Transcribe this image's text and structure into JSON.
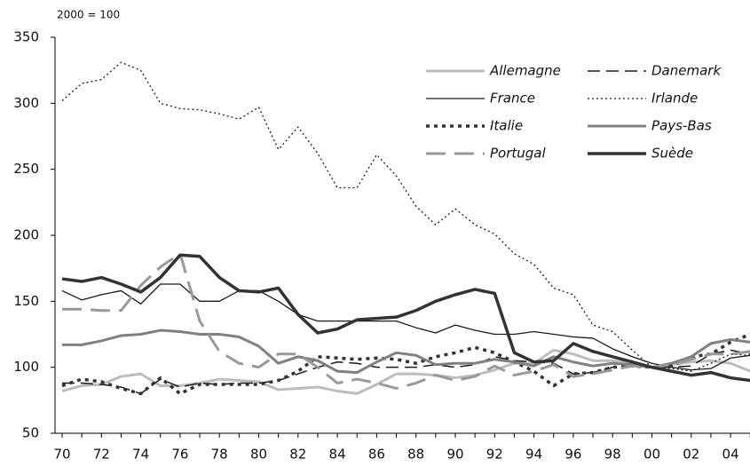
{
  "chart_data": {
    "type": "line",
    "subtitle": "2000 = 100",
    "categories": [
      "70",
      null,
      "72",
      null,
      "74",
      null,
      "76",
      null,
      "78",
      null,
      "80",
      null,
      "82",
      null,
      "84",
      null,
      "86",
      null,
      "88",
      null,
      "90",
      null,
      "92",
      null,
      "94",
      null,
      "96",
      null,
      "98",
      null,
      "00",
      null,
      "02",
      null,
      "04",
      null
    ],
    "ylim": [
      50,
      350
    ],
    "yticks": [
      50,
      100,
      150,
      200,
      250,
      300,
      350
    ],
    "series": [
      {
        "name": "Allemagne",
        "color": "#bdbdbd",
        "style": "solid",
        "width": 3,
        "values": [
          82,
          86,
          87,
          93,
          95,
          86,
          86,
          88,
          91,
          90,
          89,
          83,
          84,
          85,
          82,
          80,
          87,
          95,
          95,
          94,
          92,
          94,
          98,
          103,
          103,
          113,
          110,
          105,
          105,
          103,
          100,
          102,
          104,
          105,
          103,
          97
        ]
      },
      {
        "name": "Danemark",
        "color": "#1a1a1a",
        "style": "dashed",
        "width": 1.5,
        "values": [
          88,
          88,
          87,
          85,
          80,
          91,
          85,
          88,
          87,
          88,
          88,
          90,
          95,
          100,
          104,
          103,
          100,
          100,
          100,
          102,
          100,
          102,
          108,
          105,
          104,
          103,
          95,
          96,
          100,
          101,
          100,
          100,
          101,
          110,
          113,
          110
        ]
      },
      {
        "name": "France",
        "color": "#1a1a1a",
        "style": "solid",
        "width": 1.3,
        "values": [
          158,
          151,
          155,
          158,
          148,
          163,
          163,
          150,
          150,
          158,
          158,
          150,
          140,
          135,
          135,
          135,
          135,
          135,
          130,
          126,
          132,
          128,
          125,
          125,
          127,
          125,
          123,
          122,
          114,
          108,
          103,
          100,
          98,
          99,
          107,
          109
        ]
      },
      {
        "name": "Irlande",
        "color": "#1a1a1a",
        "style": "dotted",
        "width": 1.3,
        "values": [
          302,
          315,
          318,
          331,
          325,
          300,
          296,
          295,
          292,
          288,
          297,
          265,
          282,
          262,
          236,
          236,
          261,
          245,
          222,
          208,
          220,
          208,
          201,
          186,
          178,
          160,
          155,
          132,
          127,
          113,
          100,
          99,
          97,
          103,
          110,
          109
        ]
      },
      {
        "name": "Italie",
        "color": "#333333",
        "style": "dotted-heavy",
        "width": 3.5,
        "values": [
          86,
          91,
          89,
          84,
          80,
          92,
          80,
          87,
          87,
          87,
          87,
          90,
          97,
          108,
          107,
          106,
          107,
          106,
          103,
          108,
          111,
          115,
          111,
          104,
          97,
          86,
          95,
          96,
          100,
          101,
          100,
          101,
          108,
          110,
          119,
          125
        ]
      },
      {
        "name": "Pays-Bas",
        "color": "#808080",
        "style": "solid",
        "width": 3,
        "values": [
          117,
          117,
          120,
          124,
          125,
          128,
          127,
          125,
          125,
          123,
          116,
          103,
          108,
          105,
          97,
          96,
          104,
          111,
          109,
          102,
          103,
          103,
          106,
          104,
          101,
          108,
          104,
          101,
          103,
          102,
          100,
          103,
          108,
          118,
          121,
          119
        ]
      },
      {
        "name": "Portugal",
        "color": "#999999",
        "style": "long-dashed",
        "width": 3,
        "values": [
          144,
          144,
          143,
          143,
          162,
          176,
          186,
          135,
          112,
          103,
          100,
          110,
          110,
          100,
          88,
          91,
          88,
          84,
          88,
          94,
          90,
          93,
          101,
          94,
          97,
          102,
          93,
          95,
          98,
          101,
          100,
          102,
          106,
          110,
          110,
          112
        ]
      },
      {
        "name": "Suède",
        "color": "#333333",
        "style": "solid",
        "width": 3.5,
        "values": [
          167,
          165,
          168,
          163,
          157,
          168,
          185,
          184,
          168,
          158,
          157,
          160,
          140,
          126,
          129,
          136,
          137,
          138,
          143,
          150,
          155,
          159,
          156,
          111,
          104,
          105,
          118,
          112,
          108,
          104,
          100,
          97,
          94,
          96,
          92,
          90
        ]
      }
    ]
  }
}
